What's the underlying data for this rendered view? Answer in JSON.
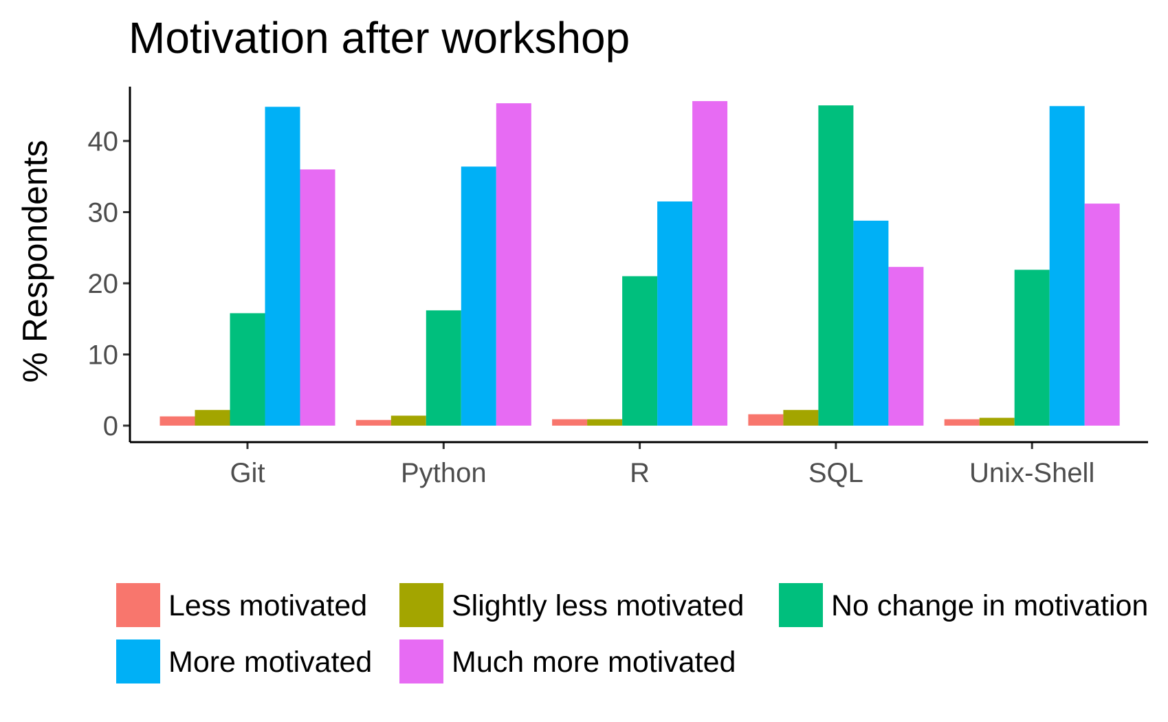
{
  "chart_data": {
    "type": "bar",
    "title": "Motivation after workshop",
    "xlabel": "",
    "ylabel": "% Respondents",
    "categories": [
      "Git",
      "Python",
      "R",
      "SQL",
      "Unix-Shell"
    ],
    "ylim": [
      0,
      47.5
    ],
    "yticks": [
      0,
      10,
      20,
      30,
      40
    ],
    "grid": false,
    "legend_position": "bottom",
    "series": [
      {
        "name": "Less motivated",
        "color": "#F8766D",
        "values": [
          1.3,
          0.8,
          0.9,
          1.6,
          0.9
        ]
      },
      {
        "name": "Slightly less motivated",
        "color": "#A3A500",
        "values": [
          2.2,
          1.4,
          0.9,
          2.2,
          1.1
        ]
      },
      {
        "name": "No change in motivation",
        "color": "#00BF7D",
        "values": [
          15.8,
          16.2,
          21.0,
          45.0,
          21.9
        ]
      },
      {
        "name": "More motivated",
        "color": "#00B0F6",
        "values": [
          44.8,
          36.4,
          31.5,
          28.8,
          44.9
        ]
      },
      {
        "name": "Much more motivated",
        "color": "#E76BF3",
        "values": [
          36.0,
          45.3,
          45.6,
          22.3,
          31.2
        ]
      }
    ]
  }
}
